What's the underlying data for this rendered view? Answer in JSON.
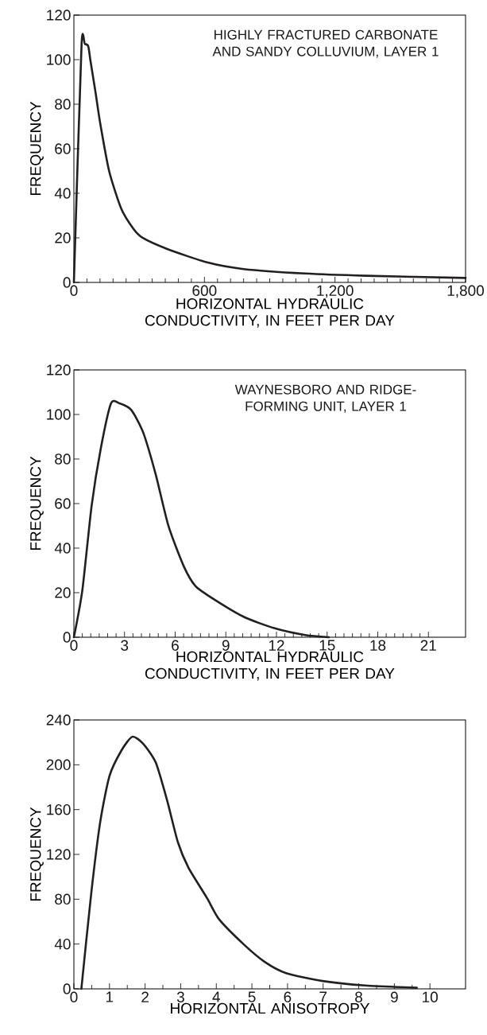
{
  "chart_data": [
    {
      "type": "line",
      "xlabel": "HORIZONTAL HYDRAULIC CONDUCTIVITY, IN FEET PER DAY",
      "ylabel": "FREQUENCY",
      "annotations": [
        "HIGHLY FRACTURED CARBONATE AND SANDY COLLUVIUM, LAYER 1"
      ],
      "x": [
        0,
        35,
        50,
        66,
        77,
        100,
        120,
        162,
        218,
        274,
        316,
        429,
        612,
        780,
        1062,
        1343,
        1800
      ],
      "series": [
        {
          "color": "#231f20",
          "values": [
            0,
            106,
            107,
            106,
            99,
            85,
            72,
            50,
            33,
            24,
            20,
            15,
            9,
            6,
            4,
            3,
            2
          ]
        }
      ],
      "xlim": [
        0,
        1800
      ],
      "ylim": [
        0,
        120
      ],
      "xticks": [
        0,
        600,
        {
          "value": 1200,
          "label": "1,200"
        },
        {
          "value": 1800,
          "label": "1,800"
        }
      ],
      "yticks": [
        0,
        20,
        40,
        60,
        80,
        100,
        120
      ]
    },
    {
      "type": "line",
      "xlabel": "HORIZONTAL HYDRAULIC CONDUCTIVITY, IN FEET PER DAY",
      "ylabel": "FREQUENCY",
      "annotations": [
        "WAYNESBORO AND RIDGE-FORMING UNIT, LAYER 1"
      ],
      "x": [
        0,
        0.5,
        1.05,
        1.6,
        2.2,
        2.7,
        3.4,
        4.1,
        4.85,
        5.6,
        6.5,
        7.2,
        8.3,
        10.1,
        11.9,
        13.7,
        15.1
      ],
      "series": [
        {
          "color": "#231f20",
          "values": [
            0,
            21,
            59,
            85,
            105,
            105,
            102,
            92,
            73,
            50,
            32,
            23,
            17,
            9,
            4,
            1,
            0
          ]
        }
      ],
      "xlim": [
        0,
        23.2
      ],
      "ylim": [
        0,
        120
      ],
      "xticks": [
        0,
        3,
        6,
        9,
        12,
        15,
        18,
        21
      ],
      "yticks": [
        0,
        20,
        40,
        60,
        80,
        100,
        120
      ]
    },
    {
      "type": "line",
      "xlabel": "HORIZONTAL ANISOTROPY",
      "ylabel": "FREQUENCY",
      "x": [
        0.21,
        0.49,
        0.74,
        1.0,
        1.34,
        1.64,
        1.94,
        2.3,
        2.62,
        2.92,
        3.22,
        3.74,
        4.08,
        4.76,
        5.36,
        5.96,
        6.98,
        8.18,
        9.63
      ],
      "series": [
        {
          "color": "#231f20",
          "values": [
            0,
            86,
            149,
            190,
            213,
            225,
            219,
            202,
            168,
            131,
            108,
            81,
            62,
            40,
            24,
            14,
            7,
            3,
            1
          ]
        }
      ],
      "xlim": [
        0,
        11
      ],
      "ylim": [
        0,
        240
      ],
      "xticks": [
        0,
        1,
        2,
        3,
        4,
        5,
        6,
        7,
        8,
        9,
        10
      ],
      "yticks": [
        0,
        40,
        80,
        120,
        160,
        200,
        240
      ]
    }
  ]
}
